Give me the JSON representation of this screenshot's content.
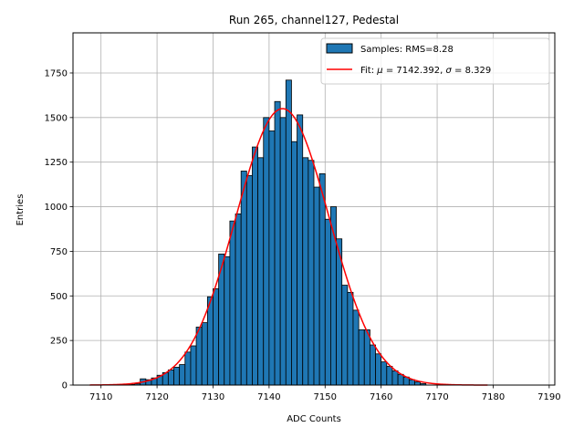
{
  "chart_data": {
    "type": "bar",
    "title": "Run 265, channel127, Pedestal",
    "xlabel": "ADC Counts",
    "ylabel": "Entries",
    "xlim": [
      7105,
      7191
    ],
    "ylim": [
      0,
      1975
    ],
    "xticks": [
      7110,
      7120,
      7130,
      7140,
      7150,
      7160,
      7170,
      7180,
      7190
    ],
    "yticks": [
      0,
      250,
      500,
      750,
      1000,
      1250,
      1500,
      1750
    ],
    "grid": true,
    "legend_position": "top-right",
    "colors": {
      "bars": "#1f77b4",
      "bar_edge": "#000000",
      "fit": "#ff0000",
      "grid": "#b0b0b0"
    },
    "histogram": {
      "name": "Samples: RMS=8.28",
      "bin_width": 1,
      "x": [
        7115,
        7116,
        7117,
        7118,
        7119,
        7120,
        7121,
        7122,
        7123,
        7124,
        7125,
        7126,
        7127,
        7128,
        7129,
        7130,
        7131,
        7132,
        7133,
        7134,
        7135,
        7136,
        7137,
        7138,
        7139,
        7140,
        7141,
        7142,
        7143,
        7144,
        7145,
        7146,
        7147,
        7148,
        7149,
        7150,
        7151,
        7152,
        7153,
        7154,
        7155,
        7156,
        7157,
        7158,
        7159,
        7160,
        7161,
        7162,
        7163,
        7164,
        7165,
        7166,
        7167
      ],
      "values": [
        3,
        7,
        35,
        30,
        40,
        55,
        70,
        85,
        100,
        115,
        185,
        220,
        325,
        350,
        495,
        540,
        735,
        720,
        920,
        960,
        1200,
        1175,
        1335,
        1275,
        1500,
        1425,
        1590,
        1500,
        1710,
        1365,
        1515,
        1275,
        1260,
        1110,
        1185,
        930,
        1000,
        820,
        560,
        520,
        420,
        310,
        310,
        225,
        175,
        130,
        105,
        80,
        60,
        45,
        30,
        18,
        8
      ]
    },
    "fit": {
      "name_prefix": "Fit: ",
      "mu_symbol": "μ",
      "mu_value": "7142.392",
      "sigma_symbol": "σ",
      "sigma_value": "8.329",
      "mu": 7142.392,
      "sigma": 8.329,
      "amplitude": 1550,
      "x_range": [
        7108,
        7179
      ]
    }
  }
}
